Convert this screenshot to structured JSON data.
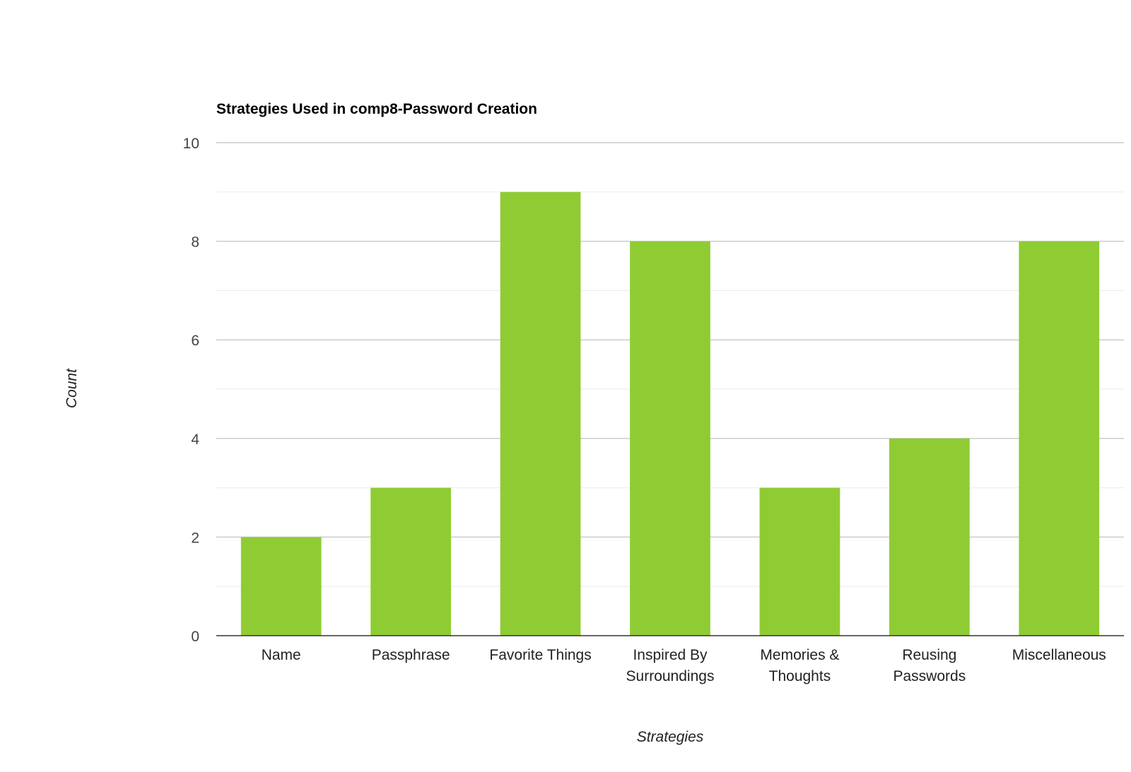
{
  "chart_data": {
    "type": "bar",
    "title": "Strategies Used in comp8-Password Creation",
    "xlabel": "Strategies",
    "ylabel": "Count",
    "categories": [
      [
        "Name"
      ],
      [
        "Passphrase"
      ],
      [
        "Favorite Things"
      ],
      [
        "Inspired By",
        "Surroundings"
      ],
      [
        "Memories &",
        "Thoughts"
      ],
      [
        "Reusing",
        "Passwords"
      ],
      [
        "Miscellaneous"
      ]
    ],
    "values": [
      2,
      3,
      9,
      8,
      3,
      4,
      8
    ],
    "ylim": [
      0,
      10
    ],
    "yticks": [
      "0",
      "2",
      "4",
      "6",
      "8",
      "10"
    ],
    "grid": true,
    "legend": "none",
    "colors": {
      "bar": "#8fcc34",
      "major_grid": "#cccccc",
      "minor_grid": "#ebebeb",
      "baseline": "#333333"
    }
  }
}
